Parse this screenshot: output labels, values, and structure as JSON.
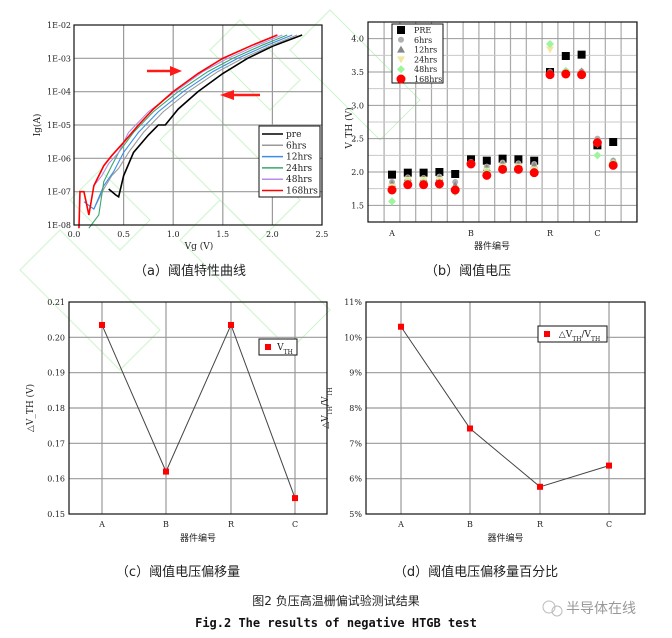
{
  "figure": {
    "caption_cn": "图2   负压高温栅偏试验测试结果",
    "caption_en": "Fig.2 The results of negative HTGB test",
    "watermark": "半导体在线"
  },
  "chart_data": [
    {
      "id": "a",
      "type": "line",
      "caption": "（a）阈值特性曲线",
      "xlabel": "Vg (V)",
      "ylabel": "Ig(A)",
      "xlim": [
        0,
        2.5
      ],
      "ylim": [
        1e-08,
        0.01
      ],
      "yscale": "log",
      "xticks": [
        "0.0",
        "0.5",
        "1.0",
        "1.5",
        "2.0",
        "2.5"
      ],
      "yticks": [
        "1E-08",
        "1E-07",
        "1E-06",
        "1E-05",
        "1E-04",
        "1E-03",
        "1E-02"
      ],
      "grid": true,
      "legend_position": "bottom-right",
      "annotations": [
        "arrow-right",
        "arrow-left"
      ],
      "series": [
        {
          "name": "pre",
          "color": "#000000",
          "points": [
            [
              0.35,
              1.2e-07
            ],
            [
              0.42,
              8e-08
            ],
            [
              0.45,
              7e-08
            ],
            [
              0.5,
              3e-07
            ],
            [
              0.6,
              1.5e-06
            ],
            [
              0.75,
              5e-06
            ],
            [
              0.85,
              1e-05
            ],
            [
              0.92,
              1e-05
            ],
            [
              1.05,
              3e-05
            ],
            [
              1.25,
              0.0001
            ],
            [
              1.5,
              0.00035
            ],
            [
              1.75,
              0.001
            ],
            [
              2.0,
              0.0023
            ],
            [
              2.3,
              0.005
            ]
          ]
        },
        {
          "name": "6hrs",
          "color": "#9a9a9a",
          "points": [
            [
              0.2,
              3e-08
            ],
            [
              0.3,
              1.2e-07
            ],
            [
              0.38,
              3e-07
            ],
            [
              0.45,
              5e-07
            ],
            [
              0.55,
              1.5e-06
            ],
            [
              0.7,
              6e-06
            ],
            [
              0.9,
              2.5e-05
            ],
            [
              1.15,
              0.0001
            ],
            [
              1.45,
              0.0004
            ],
            [
              1.7,
              0.001
            ],
            [
              2.0,
              0.0025
            ],
            [
              2.25,
              0.005
            ]
          ]
        },
        {
          "name": "12hrs",
          "color": "#3a8ee6",
          "points": [
            [
              0.1,
              5e-08
            ],
            [
              0.2,
              3e-08
            ],
            [
              0.3,
              1.5e-07
            ],
            [
              0.4,
              4e-07
            ],
            [
              0.5,
              1.5e-06
            ],
            [
              0.65,
              6e-06
            ],
            [
              0.85,
              2.5e-05
            ],
            [
              1.1,
              0.0001
            ],
            [
              1.4,
              0.0004
            ],
            [
              1.65,
              0.001
            ],
            [
              1.95,
              0.0025
            ],
            [
              2.2,
              0.005
            ]
          ]
        },
        {
          "name": "24hrs",
          "color": "#3aa66a",
          "points": [
            [
              0.15,
              8e-09
            ],
            [
              0.25,
              2e-08
            ],
            [
              0.3,
              2e-07
            ],
            [
              0.38,
              6e-07
            ],
            [
              0.45,
              1.5e-06
            ],
            [
              0.6,
              6e-06
            ],
            [
              0.8,
              2.5e-05
            ],
            [
              1.05,
              0.0001
            ],
            [
              1.35,
              0.0004
            ],
            [
              1.6,
              0.001
            ],
            [
              1.9,
              0.0025
            ],
            [
              2.15,
              0.005
            ]
          ]
        },
        {
          "name": "48hrs",
          "color": "#b48ee6",
          "points": [
            [
              0.2,
              1.5e-07
            ],
            [
              0.28,
              3e-07
            ],
            [
              0.35,
              7e-07
            ],
            [
              0.45,
              1.5e-06
            ],
            [
              0.55,
              6e-06
            ],
            [
              0.75,
              2.5e-05
            ],
            [
              1.02,
              0.0001
            ],
            [
              1.3,
              0.0004
            ],
            [
              1.55,
              0.001
            ],
            [
              1.85,
              0.0025
            ],
            [
              2.1,
              0.005
            ]
          ]
        },
        {
          "name": "168hrs",
          "color": "#ff0000",
          "points": [
            [
              0.05,
              8e-09
            ],
            [
              0.06,
              1e-07
            ],
            [
              0.1,
              1e-07
            ],
            [
              0.15,
              2e-08
            ],
            [
              0.2,
              1.5e-07
            ],
            [
              0.3,
              6e-07
            ],
            [
              0.38,
              1.2e-06
            ],
            [
              0.5,
              3e-06
            ],
            [
              0.65,
              1e-05
            ],
            [
              0.8,
              3e-05
            ],
            [
              1.0,
              0.0001
            ],
            [
              1.25,
              0.00035
            ],
            [
              1.5,
              0.001
            ],
            [
              1.8,
              0.0025
            ],
            [
              2.05,
              0.005
            ]
          ]
        }
      ]
    },
    {
      "id": "b",
      "type": "scatter",
      "caption": "（b）阈值电压",
      "xlabel": "器件编号",
      "ylabel": "V_TH (V)",
      "ylim": [
        1.25,
        4.25
      ],
      "yticks": [
        "1.5",
        "2.0",
        "2.5",
        "3.0",
        "3.5",
        "4.0"
      ],
      "group_labels": [
        {
          "label": "A",
          "at": 0
        },
        {
          "label": "B",
          "at": 5
        },
        {
          "label": "R",
          "at": 10
        },
        {
          "label": "C",
          "at": 13
        }
      ],
      "grid": true,
      "legend_position": "top-left",
      "series": [
        {
          "name": "PRE",
          "marker": "square",
          "color": "#000000",
          "values": [
            1.96,
            1.99,
            1.99,
            2.0,
            1.97,
            2.19,
            2.17,
            2.2,
            2.19,
            2.17,
            3.5,
            3.74,
            3.76,
            2.4,
            2.45
          ]
        },
        {
          "name": "6hrs",
          "marker": "circle-small",
          "color": "#b0b0b0",
          "values": [
            1.85,
            1.92,
            1.91,
            1.93,
            1.85,
            2.15,
            2.08,
            2.14,
            2.13,
            2.12,
            3.5,
            3.5,
            3.51,
            2.5,
            2.17
          ]
        },
        {
          "name": "12hrs",
          "marker": "triangle-up",
          "color": "#888888",
          "values": [
            1.82,
            1.91,
            1.9,
            1.91,
            1.8,
            2.14,
            2.06,
            2.12,
            2.12,
            2.1,
            3.5,
            3.51,
            3.51,
            2.45,
            2.16
          ]
        },
        {
          "name": "24hrs",
          "marker": "triangle-down",
          "color": "#f2e6a0",
          "values": [
            1.78,
            1.88,
            1.88,
            1.88,
            1.75,
            2.12,
            2.02,
            2.08,
            2.08,
            2.04,
            3.84,
            3.48,
            3.48,
            2.42,
            2.12
          ]
        },
        {
          "name": "48hrs",
          "marker": "diamond",
          "color": "#9ef59e",
          "values": [
            1.56,
            1.85,
            1.85,
            1.85,
            1.7,
            2.13,
            2.0,
            2.06,
            2.06,
            2.02,
            3.92,
            3.52,
            3.48,
            2.25,
            2.14
          ]
        },
        {
          "name": "168hrs",
          "marker": "circle",
          "color": "#ff0000",
          "values": [
            1.73,
            1.81,
            1.81,
            1.82,
            1.73,
            2.12,
            1.95,
            2.04,
            2.04,
            1.99,
            3.46,
            3.47,
            3.46,
            2.44,
            2.1
          ]
        }
      ]
    },
    {
      "id": "c",
      "type": "line",
      "caption": "（c）阈值电压偏移量",
      "xlabel": "器件编号",
      "ylabel": "△V_TH (V)",
      "categories": [
        "A",
        "B",
        "R",
        "C"
      ],
      "ylim": [
        0.15,
        0.21
      ],
      "yticks": [
        "0.15",
        "0.16",
        "0.17",
        "0.18",
        "0.19",
        "0.20",
        "0.21"
      ],
      "grid": true,
      "legend_position": "top-right",
      "series": [
        {
          "name": "V_TH",
          "color": "#ff0000",
          "values": [
            0.2035,
            0.162,
            0.2035,
            0.1545
          ]
        }
      ]
    },
    {
      "id": "d",
      "type": "line",
      "caption": "（d）阈值电压偏移量百分比",
      "xlabel": "器件编号",
      "ylabel": "△V_TH/V_TH",
      "categories": [
        "A",
        "B",
        "R",
        "C"
      ],
      "ylim": [
        5,
        11
      ],
      "yticks": [
        "5%",
        "6%",
        "7%",
        "8%",
        "9%",
        "10%",
        "11%"
      ],
      "grid": true,
      "legend_position": "top-right",
      "series": [
        {
          "name": "△V_TH/V_TH",
          "color": "#ff0000",
          "values": [
            10.3,
            7.42,
            5.77,
            6.37
          ]
        }
      ]
    }
  ]
}
